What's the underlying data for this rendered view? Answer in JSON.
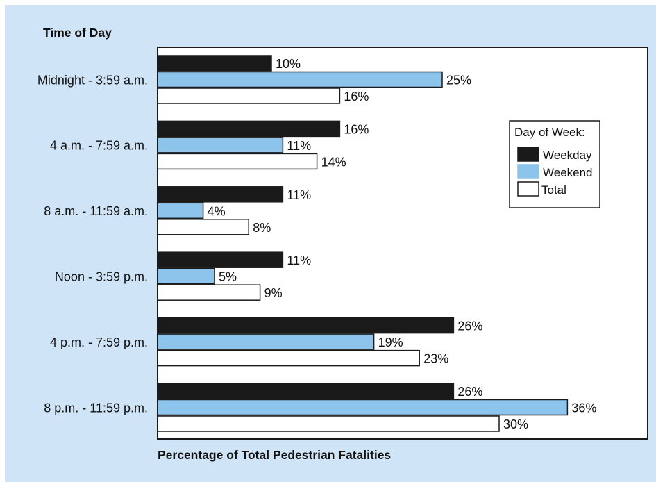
{
  "chart_data": {
    "type": "bar",
    "orientation": "horizontal",
    "y_axis_title": "Time of Day",
    "x_axis_title": "Percentage of Total Pedestrian Fatalities",
    "categories": [
      "Midnight - 3:59 a.m.",
      "4 a.m. - 7:59 a.m.",
      "8 a.m. - 11:59 a.m.",
      "Noon - 3:59 p.m.",
      "4 p.m. - 7:59 p.m.",
      "8 p.m. - 11:59 p.m."
    ],
    "series": [
      {
        "name": "Weekday",
        "values": [
          10,
          16,
          11,
          11,
          26,
          26
        ],
        "labels": [
          "10%",
          "16%",
          "11%",
          "11%",
          "26%",
          "26%"
        ],
        "color": "#1a1a1a"
      },
      {
        "name": "Weekend",
        "values": [
          25,
          11,
          4,
          5,
          19,
          36
        ],
        "labels": [
          "25%",
          "11%",
          "4%",
          "5%",
          "19%",
          "36%"
        ],
        "color": "#8cc4ec"
      },
      {
        "name": "Total",
        "values": [
          16,
          14,
          8,
          9,
          23,
          30
        ],
        "labels": [
          "16%",
          "14%",
          "8%",
          "9%",
          "23%",
          "30%"
        ],
        "color": "#ffffff"
      }
    ],
    "xlim": [
      0,
      44
    ],
    "legend": {
      "title": "Day of Week:",
      "placement": "right"
    },
    "grid": false
  },
  "colors": {
    "background": "#cfe4f6",
    "plot_area": "#ffffff",
    "outline": "#1a1a1a"
  }
}
